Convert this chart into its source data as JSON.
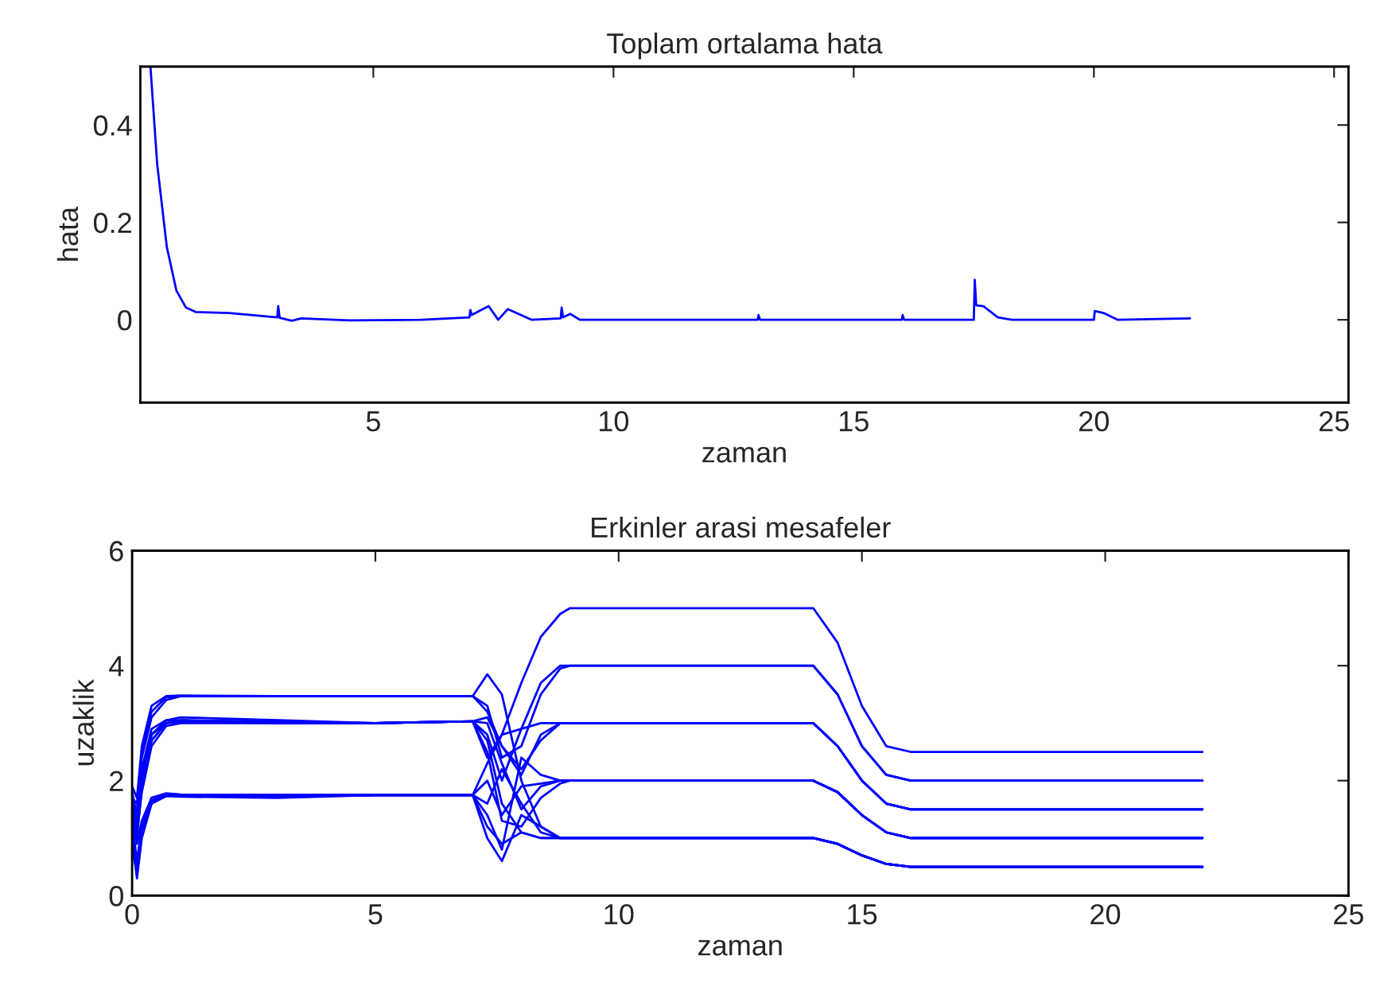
{
  "chart_data": [
    {
      "type": "line",
      "title": "Toplam ortalama hata",
      "xlabel": "zaman",
      "ylabel": "hata",
      "xlim": [
        0.15,
        25.3
      ],
      "ylim": [
        -0.17,
        0.52
      ],
      "xticks": [
        5,
        10,
        15,
        20,
        25
      ],
      "yticks": [
        0,
        0.2,
        0.4
      ],
      "series": [
        {
          "color": "#0000ff",
          "x": [
            0.36,
            0.5,
            0.7,
            0.9,
            1.1,
            1.3,
            2,
            3,
            3.02,
            3.05,
            3.3,
            3.5,
            4.5,
            6,
            7,
            7.02,
            7.05,
            7.4,
            7.6,
            7.8,
            8.3,
            8.9,
            8.92,
            8.95,
            9.1,
            9.3,
            13,
            13.02,
            13.05,
            16,
            16.02,
            16.05,
            17.5,
            17.52,
            17.55,
            17.7,
            18,
            18.3,
            20,
            20.02,
            20.2,
            20.5,
            22
          ],
          "values": [
            0.52,
            0.32,
            0.15,
            0.06,
            0.025,
            0.016,
            0.014,
            0.005,
            0.028,
            0.004,
            -0.002,
            0.003,
            -0.001,
            0.0,
            0.005,
            0.02,
            0.01,
            0.028,
            0.0,
            0.022,
            0.0,
            0.003,
            0.025,
            0.005,
            0.012,
            0.0,
            0.0,
            0.01,
            0.0,
            0.0,
            0.01,
            0.0,
            0.0,
            0.082,
            0.03,
            0.028,
            0.005,
            0.0,
            0.0,
            0.018,
            0.014,
            0.0,
            0.003
          ]
        }
      ]
    },
    {
      "type": "line",
      "title": "Erkinler arasi mesafeler",
      "xlabel": "zaman",
      "ylabel": "uzaklik",
      "xlim": [
        0,
        25
      ],
      "ylim": [
        0,
        6
      ],
      "xticks": [
        0,
        5,
        10,
        15,
        20,
        25
      ],
      "yticks": [
        0,
        2,
        4,
        6
      ],
      "x": [
        0,
        0.1,
        0.2,
        0.4,
        0.7,
        1,
        3,
        5,
        7,
        7.3,
        7.6,
        8,
        8.4,
        8.8,
        9,
        14,
        14.5,
        15,
        15.5,
        16,
        20,
        22
      ],
      "series": [
        {
          "color": "#0000ff",
          "values": [
            1.2,
            0.5,
            1.2,
            1.65,
            1.75,
            1.75,
            1.72,
            1.75,
            1.75,
            1.2,
            0.9,
            1.1,
            1.0,
            1.0,
            1.0,
            1.0,
            0.9,
            0.7,
            0.55,
            0.5,
            0.5,
            0.5
          ]
        },
        {
          "color": "#0000ff",
          "values": [
            1.0,
            0.3,
            1.0,
            1.6,
            1.73,
            1.72,
            1.7,
            1.75,
            1.75,
            1.0,
            0.6,
            1.4,
            1.2,
            1.0,
            1.0,
            1.0,
            0.9,
            0.7,
            0.55,
            0.5,
            0.5,
            0.5
          ]
        },
        {
          "color": "#0000ff",
          "values": [
            0.8,
            0.4,
            1.1,
            1.65,
            1.75,
            1.75,
            1.75,
            1.75,
            1.75,
            1.6,
            2.2,
            1.6,
            1.1,
            1.0,
            1.0,
            1.0,
            0.9,
            0.7,
            0.55,
            0.5,
            0.5,
            0.5
          ]
        },
        {
          "color": "#0000ff",
          "values": [
            1.5,
            0.9,
            1.3,
            1.7,
            1.78,
            1.76,
            1.73,
            1.75,
            1.75,
            2.0,
            1.4,
            1.9,
            1.95,
            2.0,
            2.0,
            2.0,
            1.8,
            1.4,
            1.1,
            1.0,
            1.0,
            1.0
          ]
        },
        {
          "color": "#0000ff",
          "values": [
            1.3,
            0.6,
            1.2,
            1.7,
            1.77,
            1.75,
            1.74,
            1.75,
            1.75,
            1.4,
            0.8,
            2.4,
            2.1,
            2.0,
            2.0,
            2.0,
            1.8,
            1.4,
            1.1,
            1.0,
            1.0,
            1.0
          ]
        },
        {
          "color": "#0000ff",
          "values": [
            1.1,
            0.5,
            1.1,
            1.6,
            1.76,
            1.75,
            1.75,
            1.75,
            1.75,
            2.3,
            2.8,
            2.9,
            3.0,
            3.0,
            3.0,
            3.0,
            2.6,
            2.0,
            1.6,
            1.5,
            1.5,
            1.5
          ]
        },
        {
          "color": "#0000ff",
          "values": [
            1.4,
            1.1,
            1.8,
            2.6,
            2.95,
            3.0,
            3.0,
            3.0,
            3.03,
            2.7,
            1.6,
            1.1,
            1.0,
            1.0,
            1.0,
            1.0,
            0.9,
            0.7,
            0.55,
            0.5,
            0.5,
            0.5
          ]
        },
        {
          "color": "#0000ff",
          "values": [
            1.3,
            1.0,
            1.9,
            2.7,
            3.0,
            3.05,
            3.02,
            3.0,
            3.03,
            3.0,
            2.3,
            1.5,
            1.9,
            2.0,
            2.0,
            2.0,
            1.8,
            1.4,
            1.1,
            1.0,
            1.0,
            1.0
          ]
        },
        {
          "color": "#0000ff",
          "values": [
            1.6,
            1.2,
            2.0,
            2.8,
            3.05,
            3.1,
            3.05,
            3.0,
            3.03,
            2.5,
            1.3,
            1.2,
            1.7,
            1.95,
            2.0,
            2.0,
            1.8,
            1.4,
            1.1,
            1.0,
            1.0,
            1.0
          ]
        },
        {
          "color": "#0000ff",
          "values": [
            1.5,
            1.1,
            1.9,
            2.7,
            3.0,
            3.02,
            3.0,
            3.0,
            3.03,
            3.1,
            2.6,
            2.1,
            2.8,
            3.0,
            3.0,
            3.0,
            2.6,
            2.0,
            1.6,
            1.5,
            1.5,
            1.5
          ]
        },
        {
          "color": "#0000ff",
          "values": [
            1.7,
            1.3,
            2.1,
            2.8,
            3.0,
            3.03,
            3.0,
            3.0,
            3.03,
            2.8,
            2.0,
            2.9,
            3.7,
            4.0,
            4.0,
            4.0,
            3.5,
            2.6,
            2.1,
            2.0,
            2.0,
            2.0
          ]
        },
        {
          "color": "#0000ff",
          "values": [
            1.8,
            1.4,
            2.2,
            2.9,
            3.05,
            3.05,
            3.02,
            3.0,
            3.03,
            2.4,
            2.8,
            3.7,
            4.5,
            4.9,
            5.0,
            5.0,
            4.4,
            3.3,
            2.6,
            2.5,
            2.5,
            2.5
          ]
        },
        {
          "color": "#0000ff",
          "values": [
            1.6,
            1.5,
            2.4,
            3.1,
            3.4,
            3.47,
            3.47,
            3.47,
            3.47,
            3.85,
            3.5,
            2.0,
            1.2,
            1.0,
            1.0,
            1.0,
            0.9,
            0.7,
            0.55,
            0.5,
            0.5,
            0.5
          ]
        },
        {
          "color": "#0000ff",
          "values": [
            1.7,
            1.6,
            2.5,
            3.2,
            3.45,
            3.47,
            3.47,
            3.47,
            3.47,
            3.2,
            2.6,
            2.2,
            2.7,
            3.0,
            3.0,
            3.0,
            2.6,
            2.0,
            1.6,
            1.5,
            1.5,
            1.5
          ]
        },
        {
          "color": "#0000ff",
          "values": [
            1.9,
            1.7,
            2.6,
            3.3,
            3.47,
            3.48,
            3.47,
            3.47,
            3.47,
            3.3,
            2.4,
            2.6,
            3.5,
            3.95,
            4.0,
            4.0,
            3.5,
            2.6,
            2.1,
            2.0,
            2.0,
            2.0
          ]
        }
      ]
    }
  ]
}
